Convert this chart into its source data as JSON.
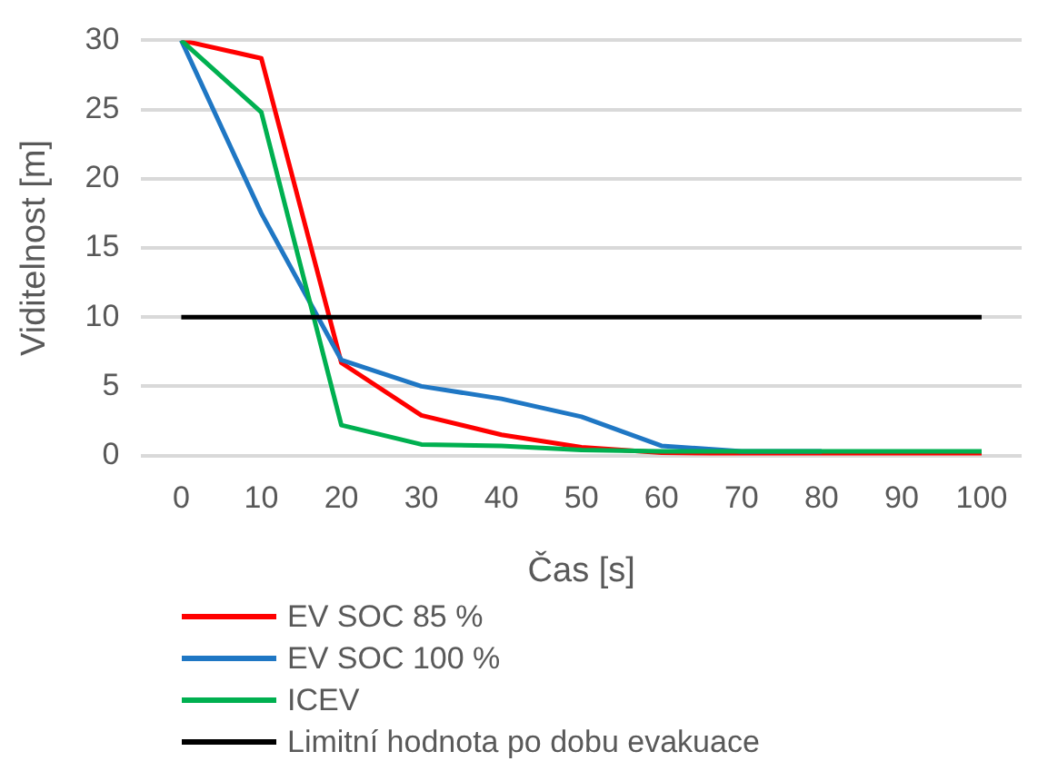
{
  "chart_data": {
    "type": "line",
    "xlabel": "Čas [s]",
    "ylabel": "Viditelnost [m]",
    "categories": [
      "0",
      "10",
      "20",
      "30",
      "40",
      "50",
      "60",
      "70",
      "80",
      "90",
      "100"
    ],
    "series": [
      {
        "name": "EV SOC 85 %",
        "color": "#ff0000",
        "values": [
          30,
          28.7,
          6.7,
          2.9,
          1.5,
          0.6,
          0.2,
          0.1,
          0.1,
          0.1,
          0.1
        ]
      },
      {
        "name": "EV SOC 100 %",
        "color": "#1f77c4",
        "values": [
          30,
          17.5,
          6.9,
          5.0,
          4.1,
          2.8,
          0.7,
          0.3,
          0.3,
          null,
          null
        ]
      },
      {
        "name": "ICEV",
        "color": "#00b050",
        "values": [
          30,
          24.8,
          2.2,
          0.8,
          0.7,
          0.4,
          0.3,
          0.3,
          0.3,
          0.3,
          0.3
        ]
      },
      {
        "name": "Limitní hodnota po dobu evakuace",
        "color": "#000000",
        "values": [
          10,
          10,
          10,
          10,
          10,
          10,
          10,
          10,
          10,
          10,
          10
        ]
      }
    ],
    "ylim": [
      0,
      30
    ],
    "yticks": [
      0,
      5,
      10,
      15,
      20,
      25,
      30
    ],
    "grid": "y",
    "legend": "bottom left",
    "marker": "none",
    "line_style": "solid"
  }
}
